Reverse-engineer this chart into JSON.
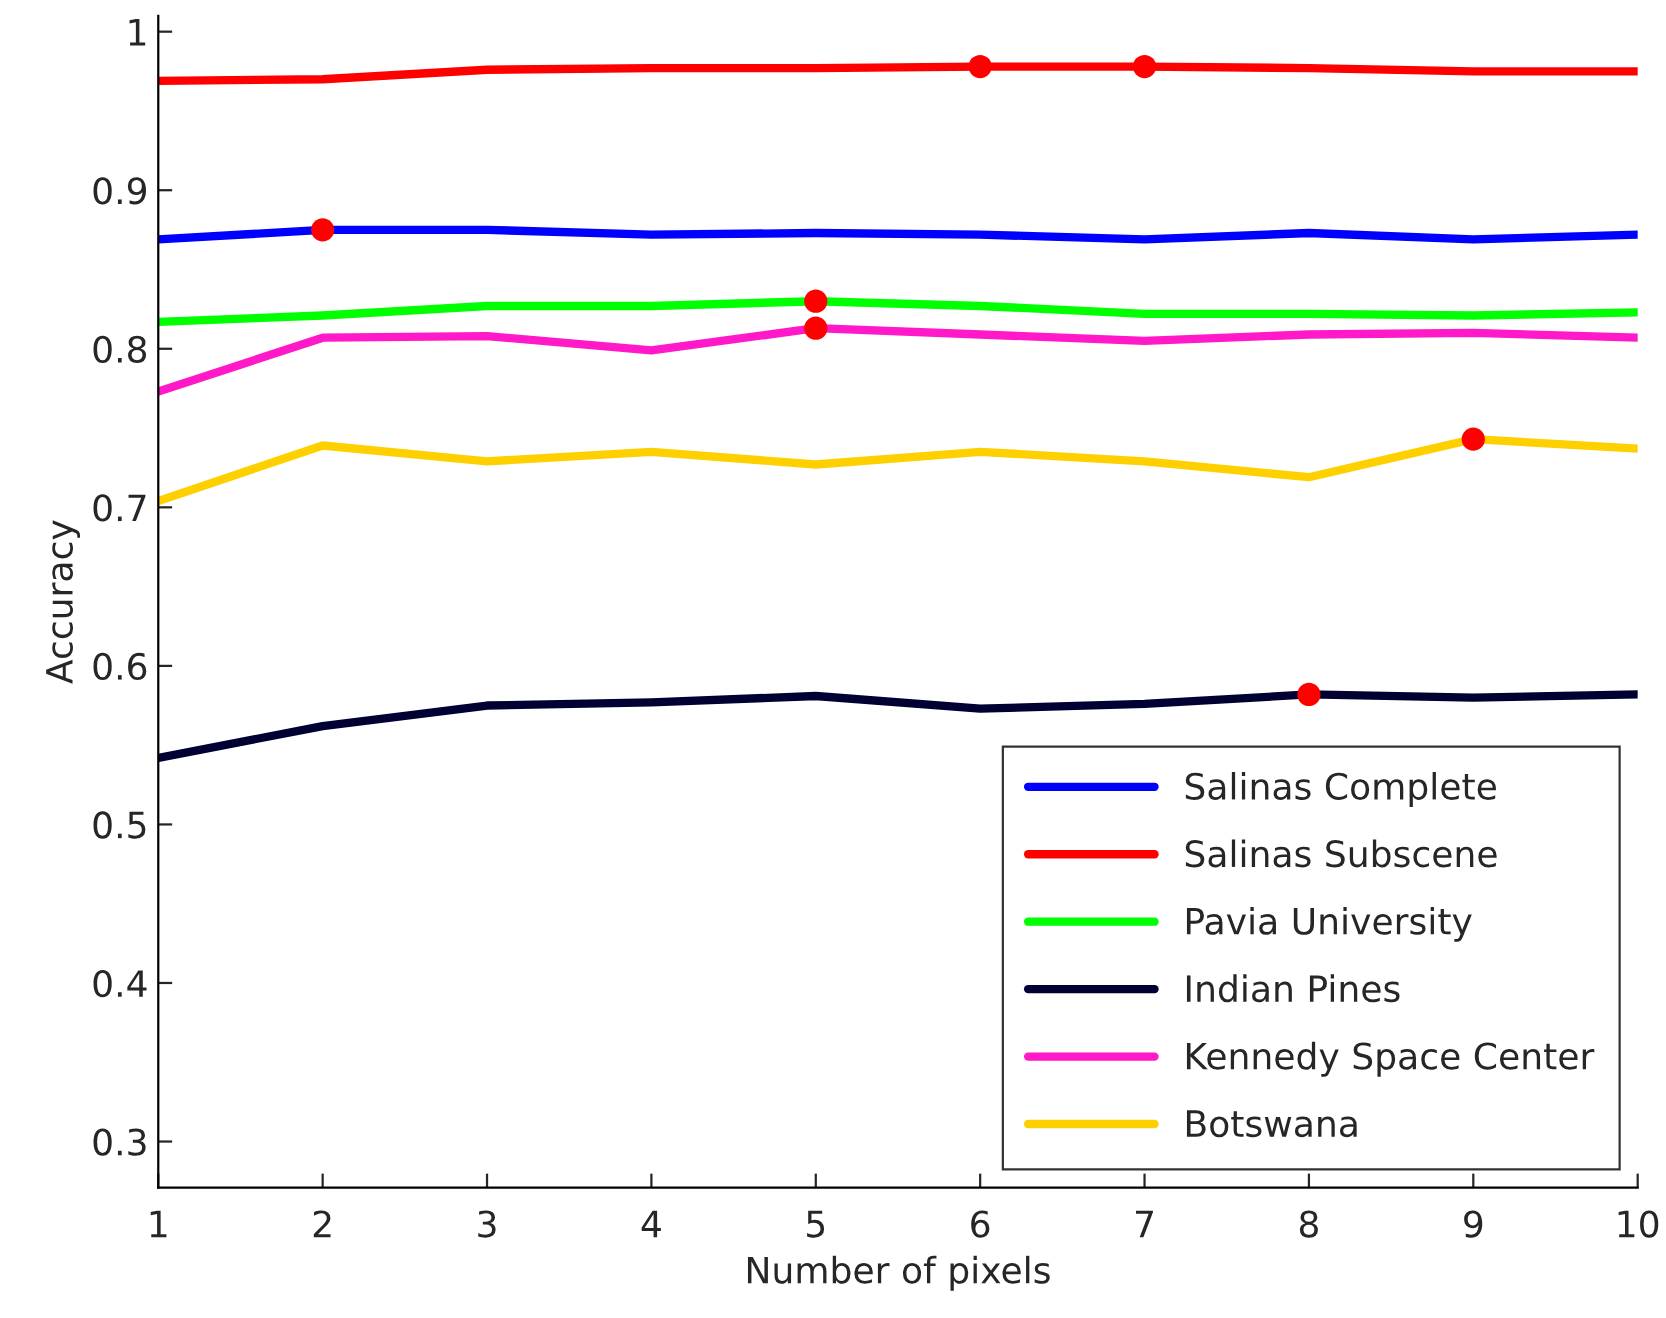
{
  "chart_data": {
    "type": "line",
    "xlabel": "Number of pixels",
    "ylabel": "Accuracy",
    "x": [
      1,
      2,
      3,
      4,
      5,
      6,
      7,
      8,
      9,
      10
    ],
    "xlim": [
      1,
      10
    ],
    "xticks": [
      1,
      2,
      3,
      4,
      5,
      6,
      7,
      8,
      9,
      10
    ],
    "ylim": [
      0.271,
      1.01
    ],
    "yticks": [
      0.3,
      0.4,
      0.5,
      0.6,
      0.7,
      0.8,
      0.9,
      {
        "value": 1,
        "label": "1"
      }
    ],
    "grid": false,
    "legend": "bottom right",
    "marker": "none",
    "line_style": "solid",
    "series": [
      {
        "name": "Salinas Complete",
        "color": "#0000ff",
        "values": [
          0.869,
          0.875,
          0.875,
          0.872,
          0.873,
          0.872,
          0.869,
          0.873,
          0.869,
          0.872
        ]
      },
      {
        "name": "Salinas Subscene",
        "color": "#ff0000",
        "values": [
          0.969,
          0.97,
          0.976,
          0.977,
          0.977,
          0.978,
          0.978,
          0.977,
          0.975,
          0.975
        ]
      },
      {
        "name": "Pavia University",
        "color": "#00ff00",
        "values": [
          0.817,
          0.821,
          0.827,
          0.827,
          0.83,
          0.827,
          0.822,
          0.822,
          0.821,
          0.823
        ]
      },
      {
        "name": "Indian Pines",
        "color": "#000033",
        "values": [
          0.542,
          0.562,
          0.575,
          0.577,
          0.581,
          0.573,
          0.576,
          0.582,
          0.58,
          0.582
        ]
      },
      {
        "name": "Kennedy Space Center",
        "color": "#ff19c8",
        "values": [
          0.773,
          0.807,
          0.808,
          0.799,
          0.813,
          0.809,
          0.805,
          0.809,
          0.81,
          0.807
        ]
      },
      {
        "name": "Botswana",
        "color": "#ffd000",
        "values": [
          0.704,
          0.739,
          0.729,
          0.735,
          0.727,
          0.735,
          0.729,
          0.719,
          0.743,
          0.737
        ]
      },
      {
        "type": "scatter",
        "marker": "circle",
        "color": "#ff0000",
        "x": [
          2,
          5,
          5,
          6,
          7,
          8,
          9
        ],
        "values": [
          0.875,
          0.83,
          0.813,
          0.978,
          0.978,
          0.582,
          0.743
        ]
      }
    ]
  }
}
